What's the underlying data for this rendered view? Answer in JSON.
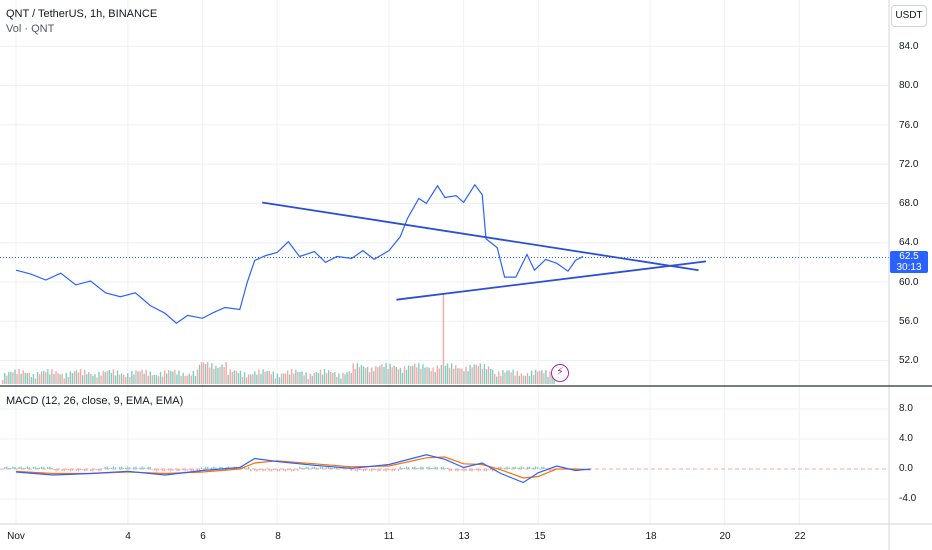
{
  "header": {
    "symbol_legend": "QNT / TetherUS, 1h, BINANCE",
    "volume_legend": "Vol · QNT",
    "macd_legend": "MACD (12, 26, close, 9, EMA, EMA)"
  },
  "price_scale": {
    "currency": "USDT",
    "current_price": "62.5",
    "countdown": "30:13",
    "ticks": [
      "84.0",
      "80.0",
      "76.0",
      "72.0",
      "68.0",
      "64.0",
      "60.0",
      "56.0",
      "52.0"
    ]
  },
  "macd_scale": {
    "ticks": [
      "8.0",
      "4.0",
      "0.0",
      "-4.0"
    ]
  },
  "time_scale": {
    "ticks": [
      "Nov",
      "4",
      "6",
      "8",
      "11",
      "13",
      "15",
      "18",
      "20",
      "22"
    ]
  },
  "colors": {
    "price_line": "#2962ff",
    "trendline": "#2b4fd6",
    "volume_up": "#7fcfc0",
    "volume_down": "#f4a9a8",
    "macd": "#2962ff",
    "signal": "#ff6d00",
    "grid": "#eef0f3"
  },
  "icons": {
    "event": "lightning-bolt-icon"
  },
  "chart_data": {
    "type": "line",
    "price_series": [
      [
        0,
        61.2
      ],
      [
        0.4,
        60.8
      ],
      [
        0.8,
        60.2
      ],
      [
        1.2,
        60.9
      ],
      [
        1.6,
        59.7
      ],
      [
        2,
        60.1
      ],
      [
        2.4,
        58.9
      ],
      [
        2.8,
        58.5
      ],
      [
        3.2,
        58.9
      ],
      [
        3.6,
        57.6
      ],
      [
        4,
        56.8
      ],
      [
        4.3,
        55.8
      ],
      [
        4.6,
        56.6
      ],
      [
        5,
        56.3
      ],
      [
        5.3,
        56.9
      ],
      [
        5.6,
        57.4
      ],
      [
        6,
        57.2
      ],
      [
        6.2,
        60.0
      ],
      [
        6.4,
        62.2
      ],
      [
        6.7,
        62.7
      ],
      [
        7,
        63.0
      ],
      [
        7.3,
        64.1
      ],
      [
        7.6,
        62.6
      ],
      [
        8,
        63.1
      ],
      [
        8.3,
        62.0
      ],
      [
        8.6,
        62.6
      ],
      [
        9,
        62.4
      ],
      [
        9.3,
        63.2
      ],
      [
        9.6,
        62.3
      ],
      [
        10,
        63.2
      ],
      [
        10.3,
        64.6
      ],
      [
        10.5,
        66.5
      ],
      [
        10.8,
        68.5
      ],
      [
        11,
        68.0
      ],
      [
        11.3,
        69.8
      ],
      [
        11.5,
        68.6
      ],
      [
        11.8,
        68.8
      ],
      [
        12,
        68.1
      ],
      [
        12.3,
        69.9
      ],
      [
        12.5,
        68.9
      ],
      [
        12.6,
        64.4
      ],
      [
        12.9,
        63.5
      ],
      [
        13.1,
        60.5
      ],
      [
        13.4,
        60.5
      ],
      [
        13.7,
        62.8
      ],
      [
        13.9,
        61.2
      ],
      [
        14.2,
        62.3
      ],
      [
        14.5,
        61.9
      ],
      [
        14.8,
        61.1
      ],
      [
        15,
        62.2
      ],
      [
        15.2,
        62.6
      ]
    ],
    "trendlines": [
      {
        "from": [
          6.6,
          68.1
        ],
        "to": [
          18.3,
          61.2
        ]
      },
      {
        "from": [
          10.2,
          58.2
        ],
        "to": [
          18.5,
          62.1
        ]
      }
    ],
    "macd_series": [
      [
        0,
        -0.4
      ],
      [
        1,
        -0.8
      ],
      [
        2,
        -0.6
      ],
      [
        3,
        -0.3
      ],
      [
        4,
        -0.8
      ],
      [
        5,
        -0.2
      ],
      [
        6,
        0.2
      ],
      [
        6.4,
        1.4
      ],
      [
        7,
        1.0
      ],
      [
        8,
        0.5
      ],
      [
        9,
        0.1
      ],
      [
        10,
        0.6
      ],
      [
        11,
        1.9
      ],
      [
        11.5,
        1.3
      ],
      [
        12,
        0.2
      ],
      [
        12.5,
        0.8
      ],
      [
        13,
        -0.6
      ],
      [
        13.6,
        -1.8
      ],
      [
        14,
        -0.5
      ],
      [
        14.5,
        0.4
      ],
      [
        15,
        -0.2
      ],
      [
        15.4,
        0.0
      ]
    ],
    "signal_series": [
      [
        0,
        -0.3
      ],
      [
        1,
        -0.6
      ],
      [
        2,
        -0.6
      ],
      [
        3,
        -0.4
      ],
      [
        4,
        -0.6
      ],
      [
        5,
        -0.4
      ],
      [
        6,
        0.0
      ],
      [
        6.4,
        0.8
      ],
      [
        7,
        1.1
      ],
      [
        8,
        0.7
      ],
      [
        9,
        0.3
      ],
      [
        10,
        0.4
      ],
      [
        11,
        1.5
      ],
      [
        11.5,
        1.6
      ],
      [
        12,
        0.7
      ],
      [
        12.5,
        0.6
      ],
      [
        13,
        -0.1
      ],
      [
        13.6,
        -1.2
      ],
      [
        14,
        -1.0
      ],
      [
        14.5,
        0.0
      ],
      [
        15,
        0.0
      ],
      [
        15.4,
        -0.1
      ]
    ],
    "price_ylim": [
      50,
      86
    ],
    "macd_ylim": [
      -8,
      10
    ],
    "x_range": [
      0,
      24
    ]
  }
}
